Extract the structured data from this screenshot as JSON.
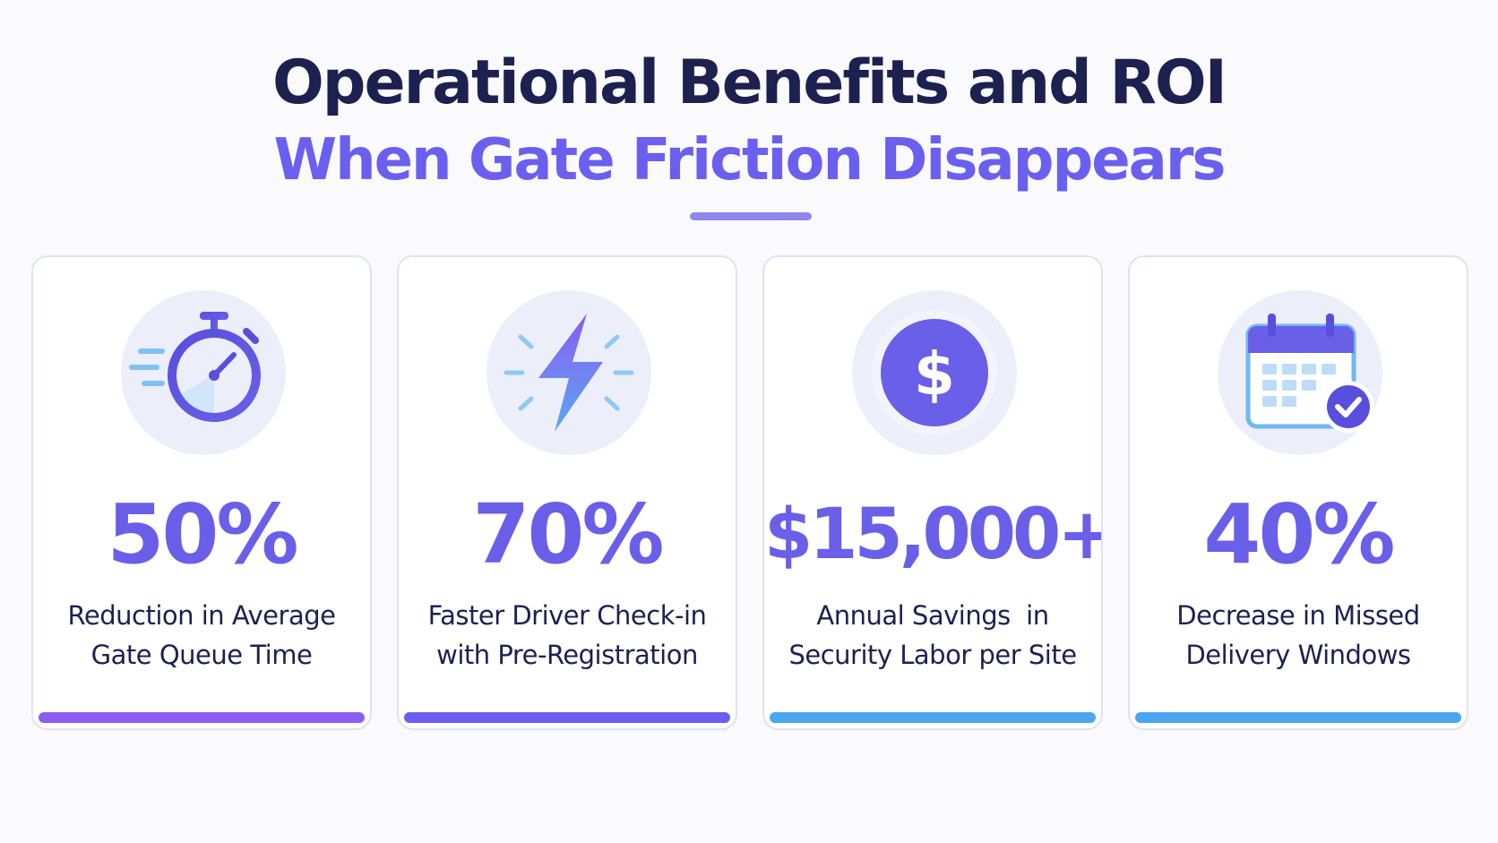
{
  "header": {
    "title": "Operational Benefits and ROI",
    "subtitle": "When Gate Friction Disappears"
  },
  "colors": {
    "title": "#1c2150",
    "accent": "#6b5ff0",
    "bar_purple": "#8c5ef0",
    "bar_indigo": "#6b5ff0",
    "bar_blue": "#4aa6f0"
  },
  "cards": [
    {
      "icon": "stopwatch-icon",
      "value": "50%",
      "label_line1": "Reduction in Average",
      "label_line2": "Gate Queue Time",
      "bar_color": "#8c5ef0"
    },
    {
      "icon": "lightning-bolt-icon",
      "value": "70%",
      "label_line1": "Faster Driver Check-in",
      "label_line2": "with Pre-Registration",
      "bar_color": "#6b5ff0"
    },
    {
      "icon": "dollar-coin-icon",
      "value": "$15,000+",
      "label_line1": "Annual Savings  in",
      "label_line2": "Security Labor per Site",
      "bar_color": "#4aa6f0"
    },
    {
      "icon": "calendar-check-icon",
      "value": "40%",
      "label_line1": "Decrease in Missed",
      "label_line2": "Delivery Windows",
      "bar_color": "#4aa6f0"
    }
  ]
}
